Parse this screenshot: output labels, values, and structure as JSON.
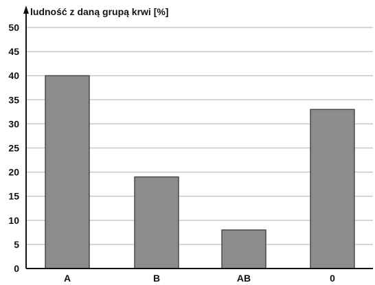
{
  "chart_data": {
    "type": "bar",
    "ylabel": "ludność z daną grupą krwi [%]",
    "categories": [
      "A",
      "B",
      "AB",
      "0"
    ],
    "values": [
      40,
      19,
      8,
      33
    ],
    "ylim": [
      0,
      50
    ],
    "yticks": [
      "0",
      "5",
      "10",
      "15",
      "20",
      "25",
      "30",
      "35",
      "40",
      "45",
      "50"
    ],
    "grid": true,
    "colors": {
      "bar": "#8c8c8c",
      "bar_edge": "#4a4a4a",
      "grid": "#c8c8c8",
      "axis": "#111111"
    }
  }
}
